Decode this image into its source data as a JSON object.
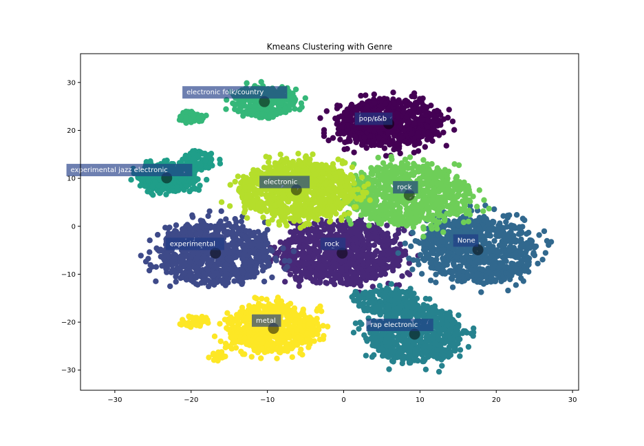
{
  "chart_data": {
    "type": "scatter",
    "title": "Kmeans Clustering with Genre",
    "xlabel": "",
    "ylabel": "",
    "xlim": [
      -34.5,
      30.8
    ],
    "ylim": [
      -34.2,
      36.0
    ],
    "xticks": [
      -30,
      -20,
      -10,
      0,
      10,
      20,
      30
    ],
    "yticks": [
      -30,
      -20,
      -10,
      0,
      10,
      20,
      30
    ],
    "xtick_labels": [
      "−30",
      "−20",
      "−10",
      "0",
      "10",
      "20",
      "30"
    ],
    "ytick_labels": [
      "−30",
      "−20",
      "−10",
      "0",
      "10",
      "20",
      "30"
    ],
    "grid": false,
    "legend": null,
    "colormap": "viridis",
    "clusters": [
      {
        "id": 0,
        "label": "pop/r&b",
        "color": "#440154",
        "centroid": [
          5.9,
          21.4
        ],
        "spread": [
          7.0,
          5.0
        ],
        "count": 700,
        "label_offset": [
          -3.9,
          0.6
        ]
      },
      {
        "id": 1,
        "label": "rock",
        "color": "#482878",
        "centroid": [
          -0.2,
          -5.6
        ],
        "spread": [
          8.0,
          6.5
        ],
        "count": 900,
        "label_offset": [
          -2.3,
          1.5
        ]
      },
      {
        "id": 2,
        "label": "experimental",
        "color": "#3e4a89",
        "centroid": [
          -16.8,
          -5.6
        ],
        "spread": [
          7.5,
          6.5
        ],
        "count": 800,
        "label_offset": [
          -6.0,
          1.5
        ]
      },
      {
        "id": 3,
        "label": "None",
        "color": "#31688e",
        "centroid": [
          17.6,
          -4.9
        ],
        "spread": [
          7.5,
          7.0
        ],
        "count": 800,
        "label_offset": [
          -2.7,
          1.5
        ]
      },
      {
        "id": 4,
        "label": "rap electronic",
        "color": "#26828e",
        "centroid": [
          9.3,
          -22.5
        ],
        "spread": [
          6.0,
          6.0
        ],
        "count": 650,
        "label_offset": [
          -5.8,
          1.5
        ]
      },
      {
        "id": 5,
        "label": "experimental jazz electronic",
        "color": "#1f9e89",
        "centroid": [
          -23.2,
          10.1
        ],
        "spread": [
          4.0,
          2.8
        ],
        "count": 350,
        "label_offset": [
          -12.6,
          1.2
        ]
      },
      {
        "id": 6,
        "label": "electronic folk/country",
        "color": "#35b779",
        "centroid": [
          -10.4,
          26.0
        ],
        "spread": [
          4.0,
          3.2
        ],
        "count": 350,
        "label_offset": [
          -10.2,
          1.5
        ]
      },
      {
        "id": 7,
        "label": "rock",
        "color": "#6ece58",
        "centroid": [
          8.6,
          6.5
        ],
        "spread": [
          8.0,
          6.5
        ],
        "count": 800,
        "label_offset": [
          -1.6,
          1.2
        ]
      },
      {
        "id": 8,
        "label": "electronic",
        "color": "#b5de2b",
        "centroid": [
          -6.2,
          7.6
        ],
        "spread": [
          7.5,
          6.0
        ],
        "count": 900,
        "label_offset": [
          -4.3,
          1.2
        ]
      },
      {
        "id": 9,
        "label": "metal",
        "color": "#fde725",
        "centroid": [
          -9.2,
          -21.3
        ],
        "spread": [
          6.0,
          5.0
        ],
        "count": 600,
        "label_offset": [
          -2.3,
          1.2
        ]
      }
    ],
    "sub_clusters": [
      {
        "parent": 6,
        "color": "#35b779",
        "center": [
          -20.0,
          22.8
        ],
        "spread": [
          1.6,
          1.0
        ],
        "count": 60
      },
      {
        "parent": 5,
        "color": "#1f9e89",
        "center": [
          -19.0,
          13.8
        ],
        "spread": [
          2.0,
          1.6
        ],
        "count": 90
      },
      {
        "parent": 9,
        "color": "#fde725",
        "center": [
          -19.5,
          -19.8
        ],
        "spread": [
          1.6,
          1.2
        ],
        "count": 50
      },
      {
        "parent": 9,
        "color": "#fde725",
        "center": [
          -16.5,
          -27.3
        ],
        "spread": [
          1.0,
          0.6
        ],
        "count": 20
      },
      {
        "parent": 4,
        "color": "#26828e",
        "center": [
          5.5,
          -15.5
        ],
        "spread": [
          4.0,
          2.5
        ],
        "count": 180
      }
    ],
    "centroid_marker": {
      "color": "#000000",
      "alpha": 0.5,
      "radius_px": 8
    },
    "annotation_box": {
      "color": "#1f3b86",
      "alpha": 0.65,
      "text_color": "#ffffff"
    }
  }
}
